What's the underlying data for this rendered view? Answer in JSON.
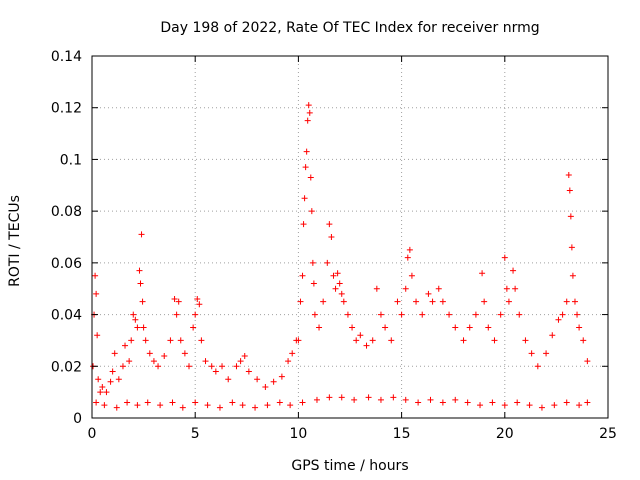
{
  "chart_data": {
    "type": "scatter",
    "title": "Day 198 of 2022, Rate Of TEC Index for receiver nrmg",
    "xlabel": "GPS time / hours",
    "ylabel": "ROTI / TECUs",
    "xlim": [
      0,
      25
    ],
    "ylim": [
      0,
      0.14
    ],
    "xticks": [
      0,
      5,
      10,
      15,
      20,
      25
    ],
    "xtick_labels": [
      "0",
      "5",
      "10",
      "15",
      "20",
      "25"
    ],
    "yticks": [
      0,
      0.02,
      0.04,
      0.06,
      0.08,
      0.1,
      0.12,
      0.14
    ],
    "ytick_labels": [
      "0",
      "0.02",
      "0.04",
      "0.06",
      "0.08",
      "0.1",
      "0.12",
      "0.14"
    ],
    "grid": true,
    "marker": "plus",
    "series_color": "#ff0000",
    "series": [
      {
        "name": "ROTI",
        "points": [
          [
            0.05,
            0.02
          ],
          [
            0.1,
            0.04
          ],
          [
            0.15,
            0.055
          ],
          [
            0.2,
            0.048
          ],
          [
            0.25,
            0.032
          ],
          [
            0.3,
            0.015
          ],
          [
            0.4,
            0.01
          ],
          [
            0.5,
            0.012
          ],
          [
            0.7,
            0.01
          ],
          [
            0.9,
            0.014
          ],
          [
            1.0,
            0.018
          ],
          [
            1.1,
            0.025
          ],
          [
            1.3,
            0.015
          ],
          [
            1.5,
            0.02
          ],
          [
            1.6,
            0.028
          ],
          [
            1.8,
            0.022
          ],
          [
            1.9,
            0.03
          ],
          [
            2.0,
            0.04
          ],
          [
            2.1,
            0.038
          ],
          [
            2.2,
            0.035
          ],
          [
            2.3,
            0.057
          ],
          [
            2.35,
            0.052
          ],
          [
            2.4,
            0.071
          ],
          [
            2.45,
            0.045
          ],
          [
            2.5,
            0.035
          ],
          [
            2.6,
            0.03
          ],
          [
            2.8,
            0.025
          ],
          [
            3.0,
            0.022
          ],
          [
            3.2,
            0.02
          ],
          [
            3.5,
            0.024
          ],
          [
            3.8,
            0.03
          ],
          [
            4.0,
            0.046
          ],
          [
            4.1,
            0.04
          ],
          [
            4.2,
            0.045
          ],
          [
            4.3,
            0.03
          ],
          [
            4.5,
            0.025
          ],
          [
            4.7,
            0.02
          ],
          [
            4.9,
            0.035
          ],
          [
            5.0,
            0.04
          ],
          [
            5.1,
            0.046
          ],
          [
            5.2,
            0.044
          ],
          [
            5.3,
            0.03
          ],
          [
            5.5,
            0.022
          ],
          [
            5.8,
            0.02
          ],
          [
            6.0,
            0.018
          ],
          [
            6.3,
            0.02
          ],
          [
            6.6,
            0.015
          ],
          [
            7.0,
            0.02
          ],
          [
            7.2,
            0.022
          ],
          [
            7.4,
            0.024
          ],
          [
            7.6,
            0.018
          ],
          [
            8.0,
            0.015
          ],
          [
            8.4,
            0.012
          ],
          [
            8.8,
            0.014
          ],
          [
            9.2,
            0.016
          ],
          [
            9.5,
            0.022
          ],
          [
            9.7,
            0.025
          ],
          [
            9.9,
            0.03
          ],
          [
            10.0,
            0.03
          ],
          [
            10.1,
            0.045
          ],
          [
            10.2,
            0.055
          ],
          [
            10.25,
            0.075
          ],
          [
            10.3,
            0.085
          ],
          [
            10.35,
            0.097
          ],
          [
            10.4,
            0.103
          ],
          [
            10.45,
            0.115
          ],
          [
            10.5,
            0.121
          ],
          [
            10.55,
            0.118
          ],
          [
            10.6,
            0.093
          ],
          [
            10.65,
            0.08
          ],
          [
            10.7,
            0.06
          ],
          [
            10.75,
            0.052
          ],
          [
            10.8,
            0.04
          ],
          [
            11.0,
            0.035
          ],
          [
            11.2,
            0.045
          ],
          [
            11.4,
            0.06
          ],
          [
            11.5,
            0.075
          ],
          [
            11.6,
            0.07
          ],
          [
            11.7,
            0.055
          ],
          [
            11.8,
            0.05
          ],
          [
            11.9,
            0.056
          ],
          [
            12.0,
            0.052
          ],
          [
            12.1,
            0.048
          ],
          [
            12.2,
            0.045
          ],
          [
            12.4,
            0.04
          ],
          [
            12.6,
            0.035
          ],
          [
            12.8,
            0.03
          ],
          [
            13.0,
            0.032
          ],
          [
            13.3,
            0.028
          ],
          [
            13.6,
            0.03
          ],
          [
            13.8,
            0.05
          ],
          [
            14.0,
            0.04
          ],
          [
            14.2,
            0.035
          ],
          [
            14.5,
            0.03
          ],
          [
            14.8,
            0.045
          ],
          [
            15.0,
            0.04
          ],
          [
            15.2,
            0.05
          ],
          [
            15.3,
            0.062
          ],
          [
            15.4,
            0.065
          ],
          [
            15.5,
            0.055
          ],
          [
            15.7,
            0.045
          ],
          [
            16.0,
            0.04
          ],
          [
            16.3,
            0.048
          ],
          [
            16.5,
            0.045
          ],
          [
            16.8,
            0.05
          ],
          [
            17.0,
            0.045
          ],
          [
            17.3,
            0.04
          ],
          [
            17.6,
            0.035
          ],
          [
            18.0,
            0.03
          ],
          [
            18.3,
            0.035
          ],
          [
            18.6,
            0.04
          ],
          [
            18.9,
            0.056
          ],
          [
            19.0,
            0.045
          ],
          [
            19.2,
            0.035
          ],
          [
            19.5,
            0.03
          ],
          [
            19.8,
            0.04
          ],
          [
            20.0,
            0.062
          ],
          [
            20.1,
            0.05
          ],
          [
            20.2,
            0.045
          ],
          [
            20.4,
            0.057
          ],
          [
            20.5,
            0.05
          ],
          [
            20.7,
            0.04
          ],
          [
            21.0,
            0.03
          ],
          [
            21.3,
            0.025
          ],
          [
            21.6,
            0.02
          ],
          [
            22.0,
            0.025
          ],
          [
            22.3,
            0.032
          ],
          [
            22.6,
            0.038
          ],
          [
            22.8,
            0.04
          ],
          [
            23.0,
            0.045
          ],
          [
            23.1,
            0.094
          ],
          [
            23.15,
            0.088
          ],
          [
            23.2,
            0.078
          ],
          [
            23.25,
            0.066
          ],
          [
            23.3,
            0.055
          ],
          [
            23.4,
            0.045
          ],
          [
            23.5,
            0.04
          ],
          [
            23.6,
            0.035
          ],
          [
            23.8,
            0.03
          ],
          [
            24.0,
            0.022
          ],
          [
            0.2,
            0.006
          ],
          [
            0.6,
            0.005
          ],
          [
            1.2,
            0.004
          ],
          [
            1.7,
            0.006
          ],
          [
            2.2,
            0.005
          ],
          [
            2.7,
            0.006
          ],
          [
            3.3,
            0.005
          ],
          [
            3.9,
            0.006
          ],
          [
            4.4,
            0.004
          ],
          [
            5.0,
            0.006
          ],
          [
            5.6,
            0.005
          ],
          [
            6.2,
            0.004
          ],
          [
            6.8,
            0.006
          ],
          [
            7.3,
            0.005
          ],
          [
            7.9,
            0.004
          ],
          [
            8.5,
            0.005
          ],
          [
            9.1,
            0.006
          ],
          [
            9.6,
            0.005
          ],
          [
            10.2,
            0.006
          ],
          [
            10.9,
            0.007
          ],
          [
            11.5,
            0.008
          ],
          [
            12.1,
            0.008
          ],
          [
            12.7,
            0.007
          ],
          [
            13.4,
            0.008
          ],
          [
            14.0,
            0.007
          ],
          [
            14.6,
            0.008
          ],
          [
            15.2,
            0.007
          ],
          [
            15.8,
            0.006
          ],
          [
            16.4,
            0.007
          ],
          [
            17.0,
            0.006
          ],
          [
            17.6,
            0.007
          ],
          [
            18.2,
            0.006
          ],
          [
            18.8,
            0.005
          ],
          [
            19.4,
            0.006
          ],
          [
            20.0,
            0.005
          ],
          [
            20.6,
            0.006
          ],
          [
            21.2,
            0.005
          ],
          [
            21.8,
            0.004
          ],
          [
            22.4,
            0.005
          ],
          [
            23.0,
            0.006
          ],
          [
            23.6,
            0.005
          ],
          [
            24.0,
            0.006
          ]
        ]
      }
    ]
  }
}
